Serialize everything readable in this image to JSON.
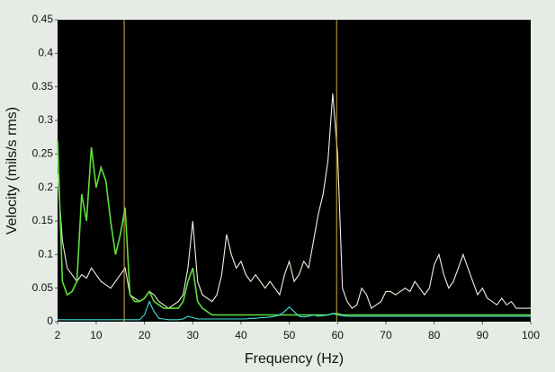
{
  "chart_data": {
    "type": "line",
    "x_label": "Frequency (Hz)",
    "y_label": "Velocity (mils/s rms)",
    "x": [
      2,
      3,
      4,
      5,
      6,
      7,
      8,
      9,
      10,
      11,
      12,
      13,
      14,
      15,
      16,
      17,
      18,
      19,
      20,
      21,
      22,
      23,
      24,
      25,
      26,
      27,
      28,
      29,
      30,
      31,
      32,
      33,
      34,
      35,
      36,
      37,
      38,
      39,
      40,
      41,
      42,
      43,
      44,
      45,
      46,
      47,
      48,
      49,
      50,
      51,
      52,
      53,
      54,
      55,
      56,
      57,
      58,
      59,
      60,
      61,
      62,
      63,
      64,
      65,
      66,
      67,
      68,
      69,
      70,
      71,
      72,
      73,
      74,
      75,
      76,
      77,
      78,
      79,
      80,
      81,
      82,
      83,
      84,
      85,
      86,
      87,
      88,
      89,
      90,
      91,
      92,
      93,
      94,
      95,
      96,
      97,
      98,
      99,
      100
    ],
    "series": [
      {
        "color": "#f0f0e0",
        "values": [
          0.22,
          0.12,
          0.08,
          0.07,
          0.06,
          0.07,
          0.065,
          0.08,
          0.07,
          0.06,
          0.055,
          0.05,
          0.06,
          0.07,
          0.08,
          0.04,
          0.035,
          0.03,
          0.035,
          0.045,
          0.04,
          0.03,
          0.025,
          0.02,
          0.025,
          0.03,
          0.04,
          0.08,
          0.15,
          0.06,
          0.04,
          0.035,
          0.03,
          0.04,
          0.07,
          0.13,
          0.1,
          0.08,
          0.09,
          0.07,
          0.06,
          0.07,
          0.06,
          0.05,
          0.06,
          0.05,
          0.04,
          0.07,
          0.09,
          0.06,
          0.07,
          0.09,
          0.08,
          0.12,
          0.16,
          0.19,
          0.24,
          0.34,
          0.25,
          0.05,
          0.03,
          0.02,
          0.025,
          0.05,
          0.04,
          0.02,
          0.025,
          0.03,
          0.045,
          0.045,
          0.04,
          0.045,
          0.05,
          0.045,
          0.06,
          0.05,
          0.04,
          0.05,
          0.085,
          0.1,
          0.07,
          0.05,
          0.06,
          0.08,
          0.1,
          0.08,
          0.06,
          0.04,
          0.05,
          0.035,
          0.03,
          0.025,
          0.035,
          0.025,
          0.03,
          0.02,
          0.02,
          0.02,
          0.02
        ]
      },
      {
        "color": "#5ee03a",
        "values": [
          0.27,
          0.06,
          0.04,
          0.045,
          0.06,
          0.19,
          0.15,
          0.26,
          0.2,
          0.23,
          0.21,
          0.15,
          0.1,
          0.13,
          0.17,
          0.04,
          0.03,
          0.03,
          0.035,
          0.045,
          0.03,
          0.025,
          0.02,
          0.02,
          0.02,
          0.02,
          0.03,
          0.06,
          0.08,
          0.03,
          0.02,
          0.015,
          0.01,
          0.01,
          0.01,
          0.01,
          0.01,
          0.01,
          0.01,
          0.01,
          0.01,
          0.01,
          0.01,
          0.01,
          0.01,
          0.01,
          0.01,
          0.01,
          0.01,
          0.01,
          0.01,
          0.01,
          0.01,
          0.01,
          0.01,
          0.01,
          0.01,
          0.012,
          0.012,
          0.01,
          0.01,
          0.01,
          0.01,
          0.01,
          0.01,
          0.01,
          0.01,
          0.01,
          0.01,
          0.01,
          0.01,
          0.01,
          0.01,
          0.01,
          0.01,
          0.01,
          0.01,
          0.01,
          0.01,
          0.01,
          0.01,
          0.01,
          0.01,
          0.01,
          0.01,
          0.01,
          0.01,
          0.01,
          0.01,
          0.01,
          0.01,
          0.01,
          0.01,
          0.01,
          0.01,
          0.01,
          0.01,
          0.01,
          0.01
        ]
      },
      {
        "color": "#40e0e0",
        "values": [
          0.003,
          0.003,
          0.003,
          0.003,
          0.003,
          0.003,
          0.003,
          0.003,
          0.003,
          0.003,
          0.003,
          0.003,
          0.003,
          0.003,
          0.003,
          0.003,
          0.003,
          0.003,
          0.01,
          0.03,
          0.015,
          0.005,
          0.004,
          0.003,
          0.003,
          0.003,
          0.004,
          0.008,
          0.006,
          0.004,
          0.004,
          0.004,
          0.004,
          0.004,
          0.004,
          0.004,
          0.004,
          0.004,
          0.004,
          0.004,
          0.005,
          0.005,
          0.006,
          0.006,
          0.007,
          0.008,
          0.01,
          0.015,
          0.022,
          0.015,
          0.008,
          0.007,
          0.008,
          0.01,
          0.008,
          0.009,
          0.01,
          0.012,
          0.01,
          0.009,
          0.008,
          0.008,
          0.008,
          0.008,
          0.008,
          0.008,
          0.008,
          0.008,
          0.008,
          0.008,
          0.008,
          0.008,
          0.008,
          0.008,
          0.008,
          0.008,
          0.008,
          0.008,
          0.008,
          0.008,
          0.008,
          0.008,
          0.008,
          0.008,
          0.008,
          0.008,
          0.008,
          0.008,
          0.008,
          0.008,
          0.008,
          0.008,
          0.008,
          0.008,
          0.008,
          0.008,
          0.008,
          0.008,
          0.008
        ]
      }
    ],
    "cursors": [
      15.8,
      59.8
    ],
    "cursor_color": "#c8b440",
    "xlim": [
      2,
      100
    ],
    "xticks": [
      2,
      10,
      20,
      30,
      40,
      50,
      60,
      70,
      80,
      90,
      100
    ],
    "ylim": [
      0,
      0.45
    ],
    "yticks": [
      0,
      0.05,
      0.1,
      0.15,
      0.2,
      0.25,
      0.3,
      0.35,
      0.4,
      0.45
    ]
  }
}
